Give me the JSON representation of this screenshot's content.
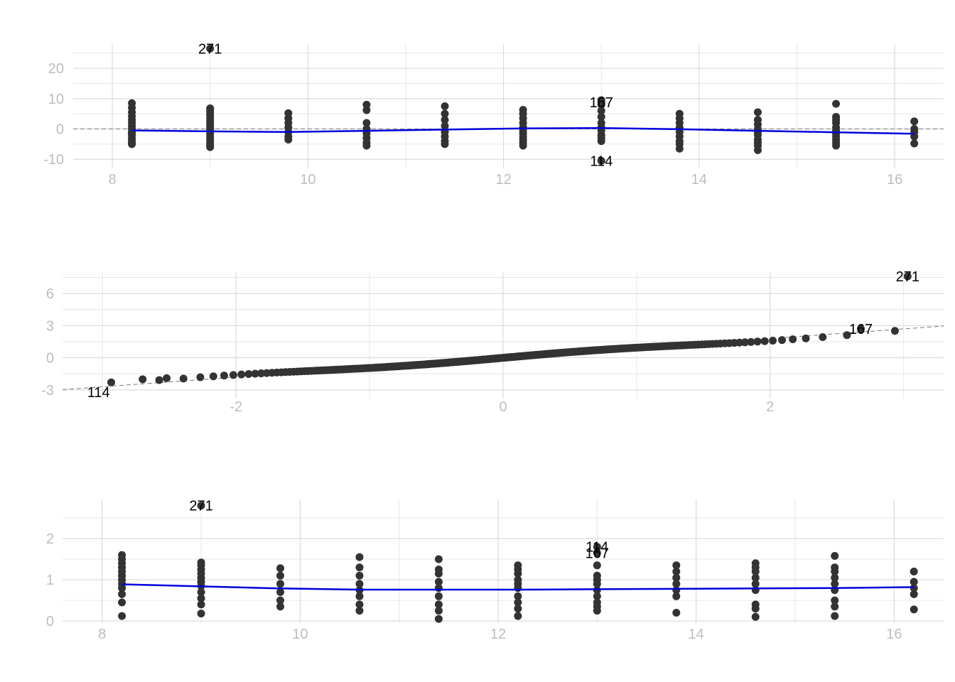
{
  "colors": {
    "points": "#333333",
    "smooth": "#0000dd",
    "reference": "#777777",
    "grid_major": "#d4d4d4",
    "grid_minor": "#e6e6e6",
    "tick_text": "#bdbdbd",
    "label_text": "#000000"
  },
  "chart_data": [
    {
      "type": "scatter",
      "title": "",
      "xlabel": "",
      "ylabel": "",
      "xlim": [
        7.6,
        16.5
      ],
      "ylim": [
        -13,
        28
      ],
      "x_ticks": [
        8,
        10,
        12,
        14,
        16
      ],
      "y_ticks": [
        -10,
        0,
        10,
        20
      ],
      "grid": true,
      "reference_line": {
        "type": "hline",
        "y": 0,
        "style": "dashed"
      },
      "smooth_line": {
        "x": [
          8.2,
          9.0,
          9.8,
          10.6,
          11.4,
          12.2,
          13.0,
          13.8,
          14.6,
          15.4,
          16.2
        ],
        "y": [
          -0.5,
          -0.8,
          -1.0,
          -0.6,
          -0.2,
          0.2,
          0.3,
          -0.1,
          -0.6,
          -1.1,
          -1.6
        ]
      },
      "points_x": [
        8.2,
        8.2,
        8.2,
        8.2,
        8.2,
        8.2,
        8.2,
        8.2,
        8.2,
        8.2,
        8.2,
        8.2,
        8.2,
        8.2,
        8.2,
        9.0,
        9.0,
        9.0,
        9.0,
        9.0,
        9.0,
        9.0,
        9.0,
        9.0,
        9.0,
        9.0,
        9.0,
        9.0,
        9.0,
        9.0,
        9.0,
        9.8,
        9.8,
        9.8,
        9.8,
        9.8,
        9.8,
        9.8,
        10.6,
        10.6,
        10.6,
        10.6,
        10.6,
        10.6,
        10.6,
        10.6,
        11.4,
        11.4,
        11.4,
        11.4,
        11.4,
        11.4,
        11.4,
        11.4,
        12.2,
        12.2,
        12.2,
        12.2,
        12.2,
        12.2,
        12.2,
        12.2,
        12.2,
        12.2,
        12.2,
        13.0,
        13.0,
        13.0,
        13.0,
        13.0,
        13.0,
        13.0,
        13.0,
        13.0,
        13.0,
        13.8,
        13.8,
        13.8,
        13.8,
        13.8,
        13.8,
        13.8,
        13.8,
        13.8,
        14.6,
        14.6,
        14.6,
        14.6,
        14.6,
        14.6,
        14.6,
        14.6,
        14.6,
        14.6,
        15.4,
        15.4,
        15.4,
        15.4,
        15.4,
        15.4,
        15.4,
        15.4,
        15.4,
        15.4,
        15.4,
        16.2,
        16.2,
        16.2,
        16.2,
        16.2,
        9.0,
        13.0,
        13.0
      ],
      "points_y": [
        8.5,
        7.0,
        5.5,
        4.2,
        3.0,
        2.0,
        1.0,
        0.0,
        -1.0,
        -2.0,
        -3.0,
        -3.8,
        -4.5,
        -5.0,
        -1.5,
        6.5,
        5.5,
        4.5,
        3.5,
        2.5,
        1.5,
        0.5,
        -0.5,
        -1.5,
        -2.5,
        -3.5,
        -4.5,
        -5.5,
        -6.0,
        6.8,
        -0.2,
        5.2,
        3.5,
        2.0,
        0.5,
        -1.0,
        -2.5,
        -3.5,
        8.0,
        6.2,
        2.0,
        0.0,
        -1.5,
        -3.0,
        -4.5,
        -5.5,
        7.5,
        5.0,
        3.0,
        1.0,
        -1.0,
        -2.5,
        -4.0,
        -5.0,
        6.3,
        5.0,
        3.5,
        2.0,
        0.5,
        -0.5,
        -1.5,
        -2.5,
        -3.5,
        -4.5,
        -5.5,
        9.5,
        8.0,
        6.0,
        4.0,
        2.0,
        0.5,
        -0.5,
        -2.0,
        -3.0,
        -4.0,
        5.0,
        3.5,
        2.0,
        0.5,
        -1.0,
        -2.5,
        -4.0,
        -5.0,
        -6.5,
        5.5,
        3.0,
        1.5,
        0.0,
        -1.0,
        -2.0,
        -3.5,
        -4.5,
        -5.5,
        -7.0,
        8.3,
        4.0,
        3.0,
        2.0,
        0.5,
        -0.5,
        -1.5,
        -2.5,
        -3.5,
        -4.5,
        -5.5,
        2.5,
        0.0,
        -1.0,
        -2.5,
        -4.8,
        26.5,
        8.8,
        -10.5
      ],
      "labels": [
        {
          "x": 9.0,
          "y": 26.5,
          "text": "271"
        },
        {
          "x": 13.0,
          "y": 8.8,
          "text": "167"
        },
        {
          "x": 13.0,
          "y": -10.5,
          "text": "114"
        }
      ]
    },
    {
      "type": "scatter",
      "title": "",
      "xlabel": "",
      "ylabel": "",
      "xlim": [
        -3.3,
        3.3
      ],
      "ylim": [
        -3.8,
        8.0
      ],
      "x_ticks": [
        -2,
        0,
        2
      ],
      "y_ticks": [
        -3,
        0,
        3,
        6
      ],
      "grid": true,
      "reference_line": {
        "type": "abline",
        "intercept": 0.0,
        "slope": 0.9,
        "style": "dashed"
      },
      "qq_points": {
        "count": 300,
        "sample_min": -3.0,
        "sample_max": 2.6,
        "slope": 0.85
      },
      "outlier_points_x": [
        -2.7,
        -2.52,
        3.03,
        2.68
      ],
      "outlier_points_y": [
        -2.0,
        -1.9,
        7.6,
        2.7
      ],
      "labels": [
        {
          "x": -3.03,
          "y": -3.2,
          "text": "114"
        },
        {
          "x": 3.03,
          "y": 7.6,
          "text": "271"
        },
        {
          "x": 2.68,
          "y": 2.7,
          "text": "167"
        }
      ]
    },
    {
      "type": "scatter",
      "title": "",
      "xlabel": "",
      "ylabel": "",
      "xlim": [
        7.6,
        16.5
      ],
      "ylim": [
        -0.05,
        2.95
      ],
      "x_ticks": [
        8,
        10,
        12,
        14,
        16
      ],
      "y_ticks": [
        0,
        1,
        2
      ],
      "grid": true,
      "smooth_line": {
        "x": [
          8.2,
          9.0,
          9.8,
          10.6,
          11.4,
          12.2,
          13.0,
          13.8,
          14.6,
          15.4,
          16.2
        ],
        "y": [
          0.89,
          0.84,
          0.79,
          0.76,
          0.76,
          0.76,
          0.77,
          0.78,
          0.79,
          0.8,
          0.82
        ]
      },
      "points_x": [
        8.2,
        8.2,
        8.2,
        8.2,
        8.2,
        8.2,
        8.2,
        8.2,
        8.2,
        8.2,
        8.2,
        8.2,
        9.0,
        9.0,
        9.0,
        9.0,
        9.0,
        9.0,
        9.0,
        9.0,
        9.0,
        9.0,
        9.0,
        9.8,
        9.8,
        9.8,
        9.8,
        9.8,
        9.8,
        10.6,
        10.6,
        10.6,
        10.6,
        10.6,
        10.6,
        10.6,
        10.6,
        11.4,
        11.4,
        11.4,
        11.4,
        11.4,
        11.4,
        11.4,
        11.4,
        11.4,
        12.2,
        12.2,
        12.2,
        12.2,
        12.2,
        12.2,
        12.2,
        12.2,
        12.2,
        12.2,
        13.0,
        13.0,
        13.0,
        13.0,
        13.0,
        13.0,
        13.0,
        13.0,
        13.0,
        13.8,
        13.8,
        13.8,
        13.8,
        13.8,
        13.8,
        13.8,
        14.6,
        14.6,
        14.6,
        14.6,
        14.6,
        14.6,
        14.6,
        14.6,
        14.6,
        15.4,
        15.4,
        15.4,
        15.4,
        15.4,
        15.4,
        15.4,
        15.4,
        15.4,
        16.2,
        16.2,
        16.2,
        16.2,
        16.2,
        9.0,
        13.0,
        13.0
      ],
      "points_y": [
        1.6,
        1.5,
        1.4,
        1.3,
        1.2,
        1.1,
        1.0,
        0.9,
        0.8,
        0.65,
        0.45,
        0.12,
        1.42,
        1.35,
        1.25,
        1.15,
        1.05,
        0.95,
        0.85,
        0.7,
        0.55,
        0.4,
        0.18,
        1.28,
        1.1,
        0.9,
        0.7,
        0.5,
        0.35,
        1.55,
        1.3,
        1.1,
        0.9,
        0.75,
        0.6,
        0.4,
        0.25,
        1.5,
        1.25,
        1.15,
        0.95,
        0.8,
        0.6,
        0.4,
        0.25,
        0.05,
        1.35,
        1.25,
        1.15,
        1.0,
        0.9,
        0.8,
        0.6,
        0.45,
        0.3,
        0.12,
        1.35,
        1.1,
        1.0,
        0.9,
        0.75,
        0.6,
        0.45,
        0.35,
        0.25,
        1.35,
        1.2,
        1.05,
        0.9,
        0.75,
        0.6,
        0.2,
        1.4,
        1.3,
        1.2,
        1.05,
        0.9,
        0.75,
        0.4,
        0.3,
        0.1,
        1.58,
        1.3,
        1.2,
        1.05,
        0.9,
        0.75,
        0.5,
        0.35,
        0.12,
        1.2,
        0.95,
        0.8,
        0.65,
        0.28,
        2.8,
        1.8,
        1.65
      ],
      "labels": [
        {
          "x": 9.0,
          "y": 2.8,
          "text": "271"
        },
        {
          "x": 13.0,
          "y": 1.8,
          "text": "114"
        },
        {
          "x": 13.0,
          "y": 1.65,
          "text": "167"
        }
      ]
    }
  ]
}
